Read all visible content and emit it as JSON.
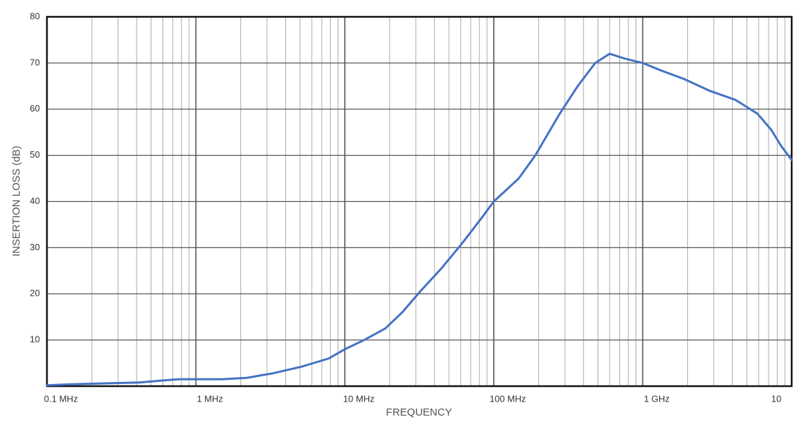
{
  "chart_data": {
    "type": "line",
    "x_label": "FREQUENCY",
    "y_label": "INSERTION LOSS (dB)",
    "x_log": true,
    "minor_grid": true,
    "grid": true,
    "xlim": [
      0.1,
      10000
    ],
    "xticks": [
      {
        "value": 0.1,
        "label": "0.1 MHz"
      },
      {
        "value": 1,
        "label": "1 MHz"
      },
      {
        "value": 10,
        "label": "10 MHz"
      },
      {
        "value": 100,
        "label": "100 MHz"
      },
      {
        "value": 1000,
        "label": "1 GHz"
      },
      {
        "value": 10000,
        "label": "10"
      }
    ],
    "ylim": [
      0,
      80
    ],
    "yticks": [
      10,
      20,
      30,
      40,
      50,
      60,
      70,
      80
    ],
    "series": [
      {
        "color": "#4472c4",
        "x": [
          0.1,
          0.143,
          0.245,
          0.42,
          0.58,
          0.77,
          1.0,
          1.5,
          2.2,
          3.3,
          5.1,
          7.8,
          10,
          13.5,
          18.7,
          24.3,
          32,
          44.5,
          61.5,
          85.4,
          100,
          147,
          190,
          277,
          366,
          480,
          600,
          750,
          1000,
          1300,
          1900,
          2800,
          4200,
          5900,
          7300,
          8500,
          10000
        ],
        "values": [
          0.2,
          0.4,
          0.6,
          0.8,
          1.2,
          1.5,
          1.5,
          1.5,
          1.8,
          2.8,
          4.2,
          6.0,
          8.0,
          10,
          12.5,
          16,
          20.5,
          25.5,
          31,
          37,
          40,
          45,
          50,
          59,
          65,
          70,
          72,
          71,
          70,
          68.5,
          66.5,
          64,
          62,
          59,
          55.5,
          52,
          49
        ]
      }
    ]
  }
}
